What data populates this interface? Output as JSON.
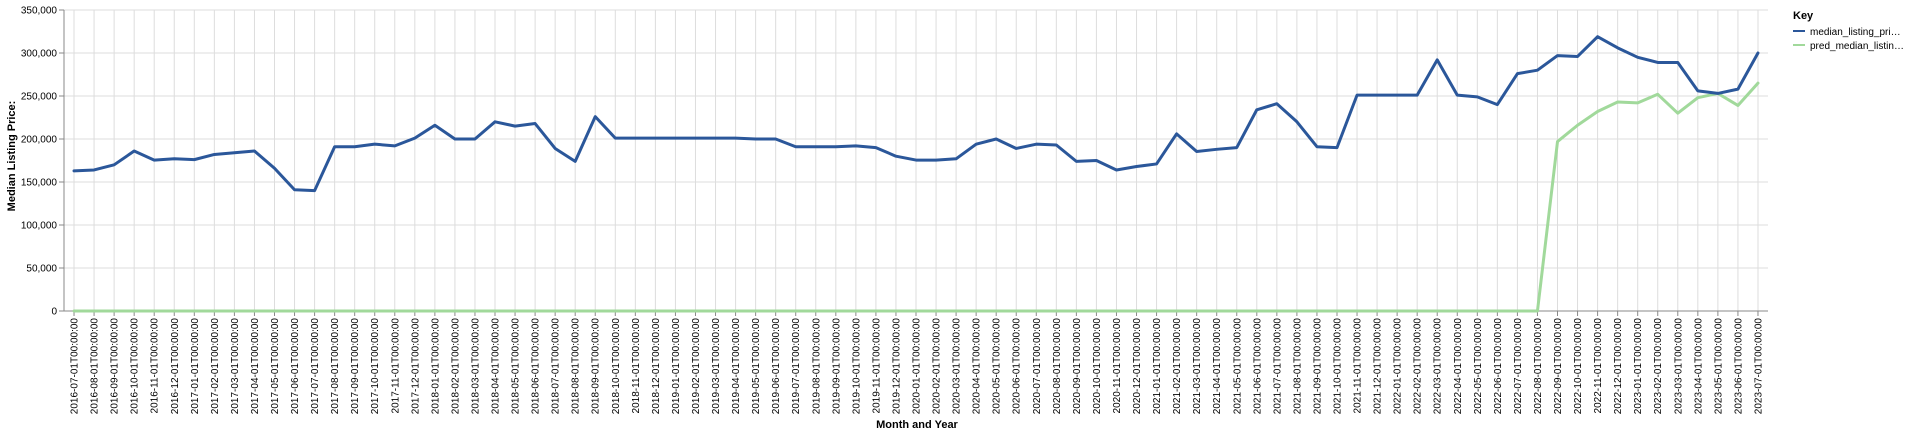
{
  "chart_data": {
    "type": "line",
    "title": "",
    "xlabel": "Month and Year",
    "ylabel": "Median Listing Price:",
    "ylim": [
      0,
      350000
    ],
    "y_ticks": [
      "0",
      "50,000",
      "100,000",
      "150,000",
      "200,000",
      "250,000",
      "300,000",
      "350,000"
    ],
    "grid": true,
    "legend": {
      "title": "Key",
      "placement": "top-right"
    },
    "x": [
      "2016-07-01T00:00:00",
      "2016-08-01T00:00:00",
      "2016-09-01T00:00:00",
      "2016-10-01T00:00:00",
      "2016-11-01T00:00:00",
      "2016-12-01T00:00:00",
      "2017-01-01T00:00:00",
      "2017-02-01T00:00:00",
      "2017-03-01T00:00:00",
      "2017-04-01T00:00:00",
      "2017-05-01T00:00:00",
      "2017-06-01T00:00:00",
      "2017-07-01T00:00:00",
      "2017-08-01T00:00:00",
      "2017-09-01T00:00:00",
      "2017-10-01T00:00:00",
      "2017-11-01T00:00:00",
      "2017-12-01T00:00:00",
      "2018-01-01T00:00:00",
      "2018-02-01T00:00:00",
      "2018-03-01T00:00:00",
      "2018-04-01T00:00:00",
      "2018-05-01T00:00:00",
      "2018-06-01T00:00:00",
      "2018-07-01T00:00:00",
      "2018-08-01T00:00:00",
      "2018-09-01T00:00:00",
      "2018-10-01T00:00:00",
      "2018-11-01T00:00:00",
      "2018-12-01T00:00:00",
      "2019-01-01T00:00:00",
      "2019-02-01T00:00:00",
      "2019-03-01T00:00:00",
      "2019-04-01T00:00:00",
      "2019-05-01T00:00:00",
      "2019-06-01T00:00:00",
      "2019-07-01T00:00:00",
      "2019-08-01T00:00:00",
      "2019-09-01T00:00:00",
      "2019-10-01T00:00:00",
      "2019-11-01T00:00:00",
      "2019-12-01T00:00:00",
      "2020-01-01T00:00:00",
      "2020-02-01T00:00:00",
      "2020-03-01T00:00:00",
      "2020-04-01T00:00:00",
      "2020-05-01T00:00:00",
      "2020-06-01T00:00:00",
      "2020-07-01T00:00:00",
      "2020-08-01T00:00:00",
      "2020-09-01T00:00:00",
      "2020-10-01T00:00:00",
      "2020-11-01T00:00:00",
      "2020-12-01T00:00:00",
      "2021-01-01T00:00:00",
      "2021-02-01T00:00:00",
      "2021-03-01T00:00:00",
      "2021-04-01T00:00:00",
      "2021-05-01T00:00:00",
      "2021-06-01T00:00:00",
      "2021-07-01T00:00:00",
      "2021-08-01T00:00:00",
      "2021-09-01T00:00:00",
      "2021-10-01T00:00:00",
      "2021-11-01T00:00:00",
      "2021-12-01T00:00:00",
      "2022-01-01T00:00:00",
      "2022-02-01T00:00:00",
      "2022-03-01T00:00:00",
      "2022-04-01T00:00:00",
      "2022-05-01T00:00:00",
      "2022-06-01T00:00:00",
      "2022-07-01T00:00:00",
      "2022-08-01T00:00:00",
      "2022-09-01T00:00:00",
      "2022-10-01T00:00:00",
      "2022-11-01T00:00:00",
      "2022-12-01T00:00:00",
      "2023-01-01T00:00:00",
      "2023-02-01T00:00:00",
      "2023-03-01T00:00:00",
      "2023-04-01T00:00:00",
      "2023-05-01T00:00:00",
      "2023-06-01T00:00:00",
      "2023-07-01T00:00:00"
    ],
    "series": [
      {
        "name": "median_listing_pri…",
        "color": "#2b579a",
        "values": [
          163000,
          164000,
          170000,
          186000,
          175500,
          177000,
          176000,
          182000,
          184000,
          186000,
          166000,
          141000,
          140000,
          191000,
          191000,
          194000,
          192000,
          201000,
          216000,
          200000,
          200000,
          220000,
          215000,
          218000,
          189000,
          174000,
          226000,
          201000,
          201000,
          201000,
          201000,
          201000,
          201000,
          201000,
          200000,
          200000,
          191000,
          191000,
          191000,
          192000,
          190000,
          180000,
          175500,
          175500,
          177000,
          194000,
          200000,
          189000,
          194000,
          193000,
          174000,
          175000,
          164000,
          168000,
          171000,
          206000,
          185500,
          188000,
          190000,
          234000,
          241000,
          220000,
          191000,
          190000,
          251000,
          251000,
          251000,
          251000,
          292000,
          251000,
          249000,
          240000,
          276000,
          280000,
          297000,
          296000,
          319000,
          306000,
          295000,
          289000,
          289000,
          256000,
          253000,
          258000,
          300000
        ]
      },
      {
        "name": "pred_median_listin…",
        "color": "#a1d99b",
        "values": [
          0,
          0,
          0,
          0,
          0,
          0,
          0,
          0,
          0,
          0,
          0,
          0,
          0,
          0,
          0,
          0,
          0,
          0,
          0,
          0,
          0,
          0,
          0,
          0,
          0,
          0,
          0,
          0,
          0,
          0,
          0,
          0,
          0,
          0,
          0,
          0,
          0,
          0,
          0,
          0,
          0,
          0,
          0,
          0,
          0,
          0,
          0,
          0,
          0,
          0,
          0,
          0,
          0,
          0,
          0,
          0,
          0,
          0,
          0,
          0,
          0,
          0,
          0,
          0,
          0,
          0,
          0,
          0,
          0,
          0,
          0,
          0,
          0,
          0,
          197000,
          216000,
          232000,
          243000,
          242000,
          252000,
          230000,
          248000,
          253000,
          239000,
          265000
        ]
      }
    ]
  }
}
